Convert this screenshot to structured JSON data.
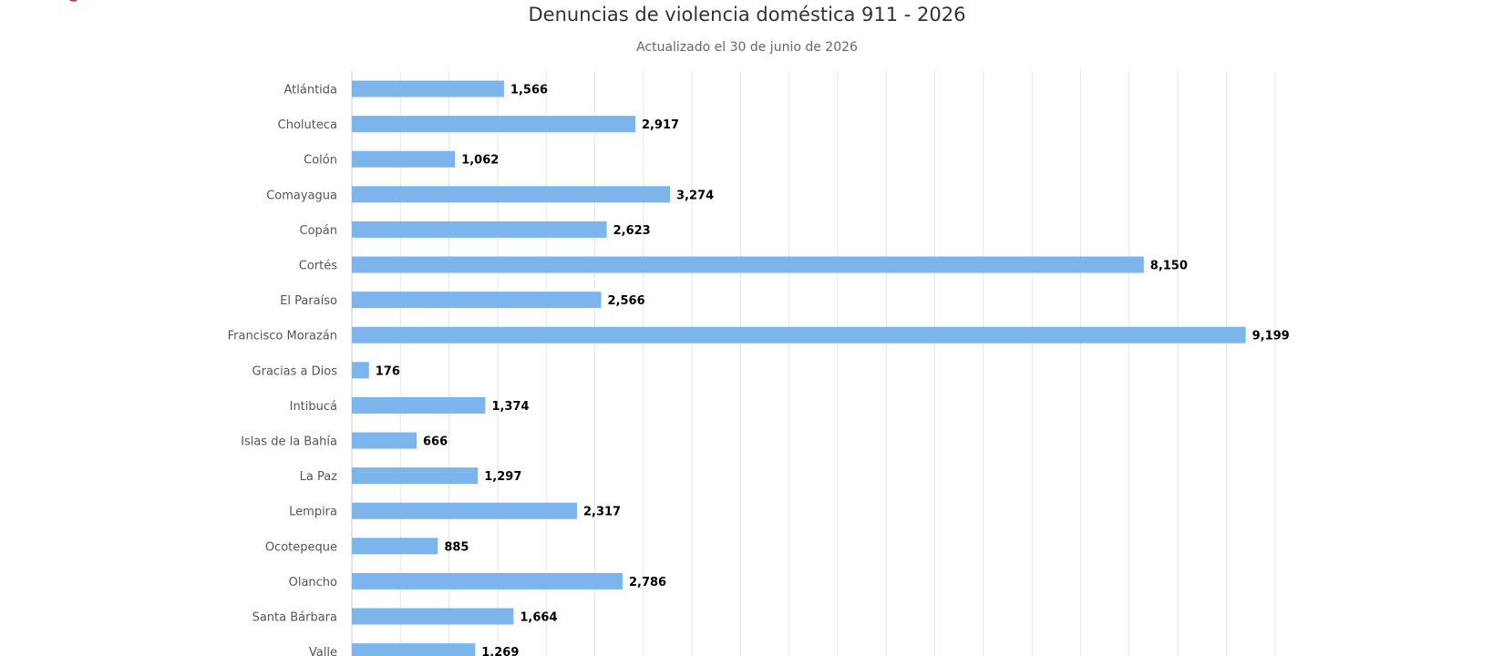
{
  "chart_data": {
    "type": "bar",
    "orientation": "horizontal",
    "title": "Denuncias de violencia doméstica 911 - 2026",
    "subtitle": "Actualizado el 30 de junio de 2026",
    "categories": [
      "Atlántida",
      "Choluteca",
      "Colón",
      "Comayagua",
      "Copán",
      "Cortés",
      "El Paraíso",
      "Francisco Morazán",
      "Gracias a Dios",
      "Intibucá",
      "Islas de la Bahía",
      "La Paz",
      "Lempira",
      "Ocotepeque",
      "Olancho",
      "Santa Bárbara",
      "Valle"
    ],
    "values": [
      1566,
      2917,
      1062,
      3274,
      2623,
      8150,
      2566,
      9199,
      176,
      1374,
      666,
      1297,
      2317,
      885,
      2786,
      1664,
      1269
    ],
    "value_labels": [
      "1,566",
      "2,917",
      "1,062",
      "3,274",
      "2,623",
      "8,150",
      "2,566",
      "9,199",
      "176",
      "1,374",
      "666",
      "1,297",
      "2,317",
      "885",
      "2,786",
      "1,664",
      "1,269"
    ],
    "xlim": [
      0,
      10000
    ],
    "grid": true,
    "bar_color": "#7cb5ec"
  }
}
